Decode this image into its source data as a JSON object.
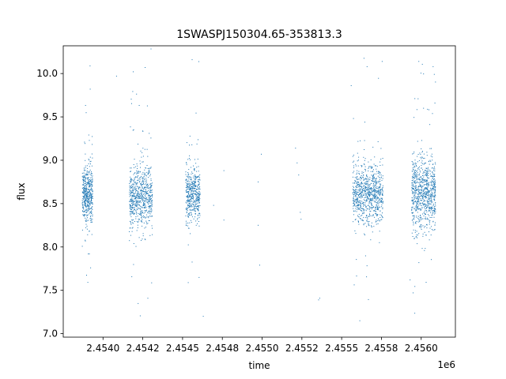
{
  "chart_data": {
    "type": "scatter",
    "title": "1SWASPJ150304.65-353813.3",
    "xlabel": "time",
    "ylabel": "flux",
    "x_offset_label": "1e6",
    "xlim": [
      2453750,
      2456215
    ],
    "ylim": [
      6.96,
      10.32
    ],
    "x_ticks": [
      2454000,
      2454250,
      2454500,
      2454750,
      2455000,
      2455250,
      2455500,
      2455750,
      2456000
    ],
    "x_tick_labels": [
      "2.4540",
      "2.4542",
      "2.4545",
      "2.4548",
      "2.4550",
      "2.4552",
      "2.4555",
      "2.4558",
      "2.4560"
    ],
    "y_ticks": [
      7.0,
      7.5,
      8.0,
      8.5,
      9.0,
      9.5,
      10.0
    ],
    "y_tick_labels": [
      "7.0",
      "7.5",
      "8.0",
      "8.5",
      "9.0",
      "9.5",
      "10.0"
    ],
    "grid": false,
    "marker_color": "#1f77b4",
    "series": [
      {
        "clusters": [
          {
            "t_start": 2453870,
            "t_end": 2453935,
            "center": 8.62,
            "spread": 0.28,
            "n": 500
          },
          {
            "t_start": 2454165,
            "t_end": 2454310,
            "center": 8.58,
            "spread": 0.32,
            "n": 700
          },
          {
            "t_start": 2454520,
            "t_end": 2454610,
            "center": 8.6,
            "spread": 0.28,
            "n": 500
          },
          {
            "t_start": 2455570,
            "t_end": 2455760,
            "center": 8.6,
            "spread": 0.3,
            "n": 850
          },
          {
            "t_start": 2455940,
            "t_end": 2456090,
            "center": 8.62,
            "spread": 0.38,
            "n": 850
          }
        ],
        "sparse_points": [
          [
            2454760,
            8.88
          ],
          [
            2454760,
            8.31
          ],
          [
            2454975,
            8.75
          ],
          [
            2454975,
            8.25
          ],
          [
            2454985,
            7.79
          ],
          [
            2454995,
            9.07
          ],
          [
            2455210,
            9.14
          ],
          [
            2455220,
            8.97
          ],
          [
            2455230,
            8.83
          ],
          [
            2455240,
            8.4
          ],
          [
            2455245,
            8.32
          ],
          [
            2455355,
            7.39
          ],
          [
            2455362,
            7.41
          ],
          [
            2454695,
            8.48
          ],
          [
            2454630,
            7.2
          ],
          [
            2454085,
            9.97
          ],
          [
            2454190,
            10.02
          ],
          [
            2454265,
            10.07
          ],
          [
            2454560,
            10.16
          ],
          [
            2455755,
            10.14
          ],
          [
            2455660,
            10.08
          ],
          [
            2456075,
            10.08
          ],
          [
            2455560,
            9.86
          ],
          [
            2455930,
            7.62
          ]
        ]
      }
    ]
  }
}
